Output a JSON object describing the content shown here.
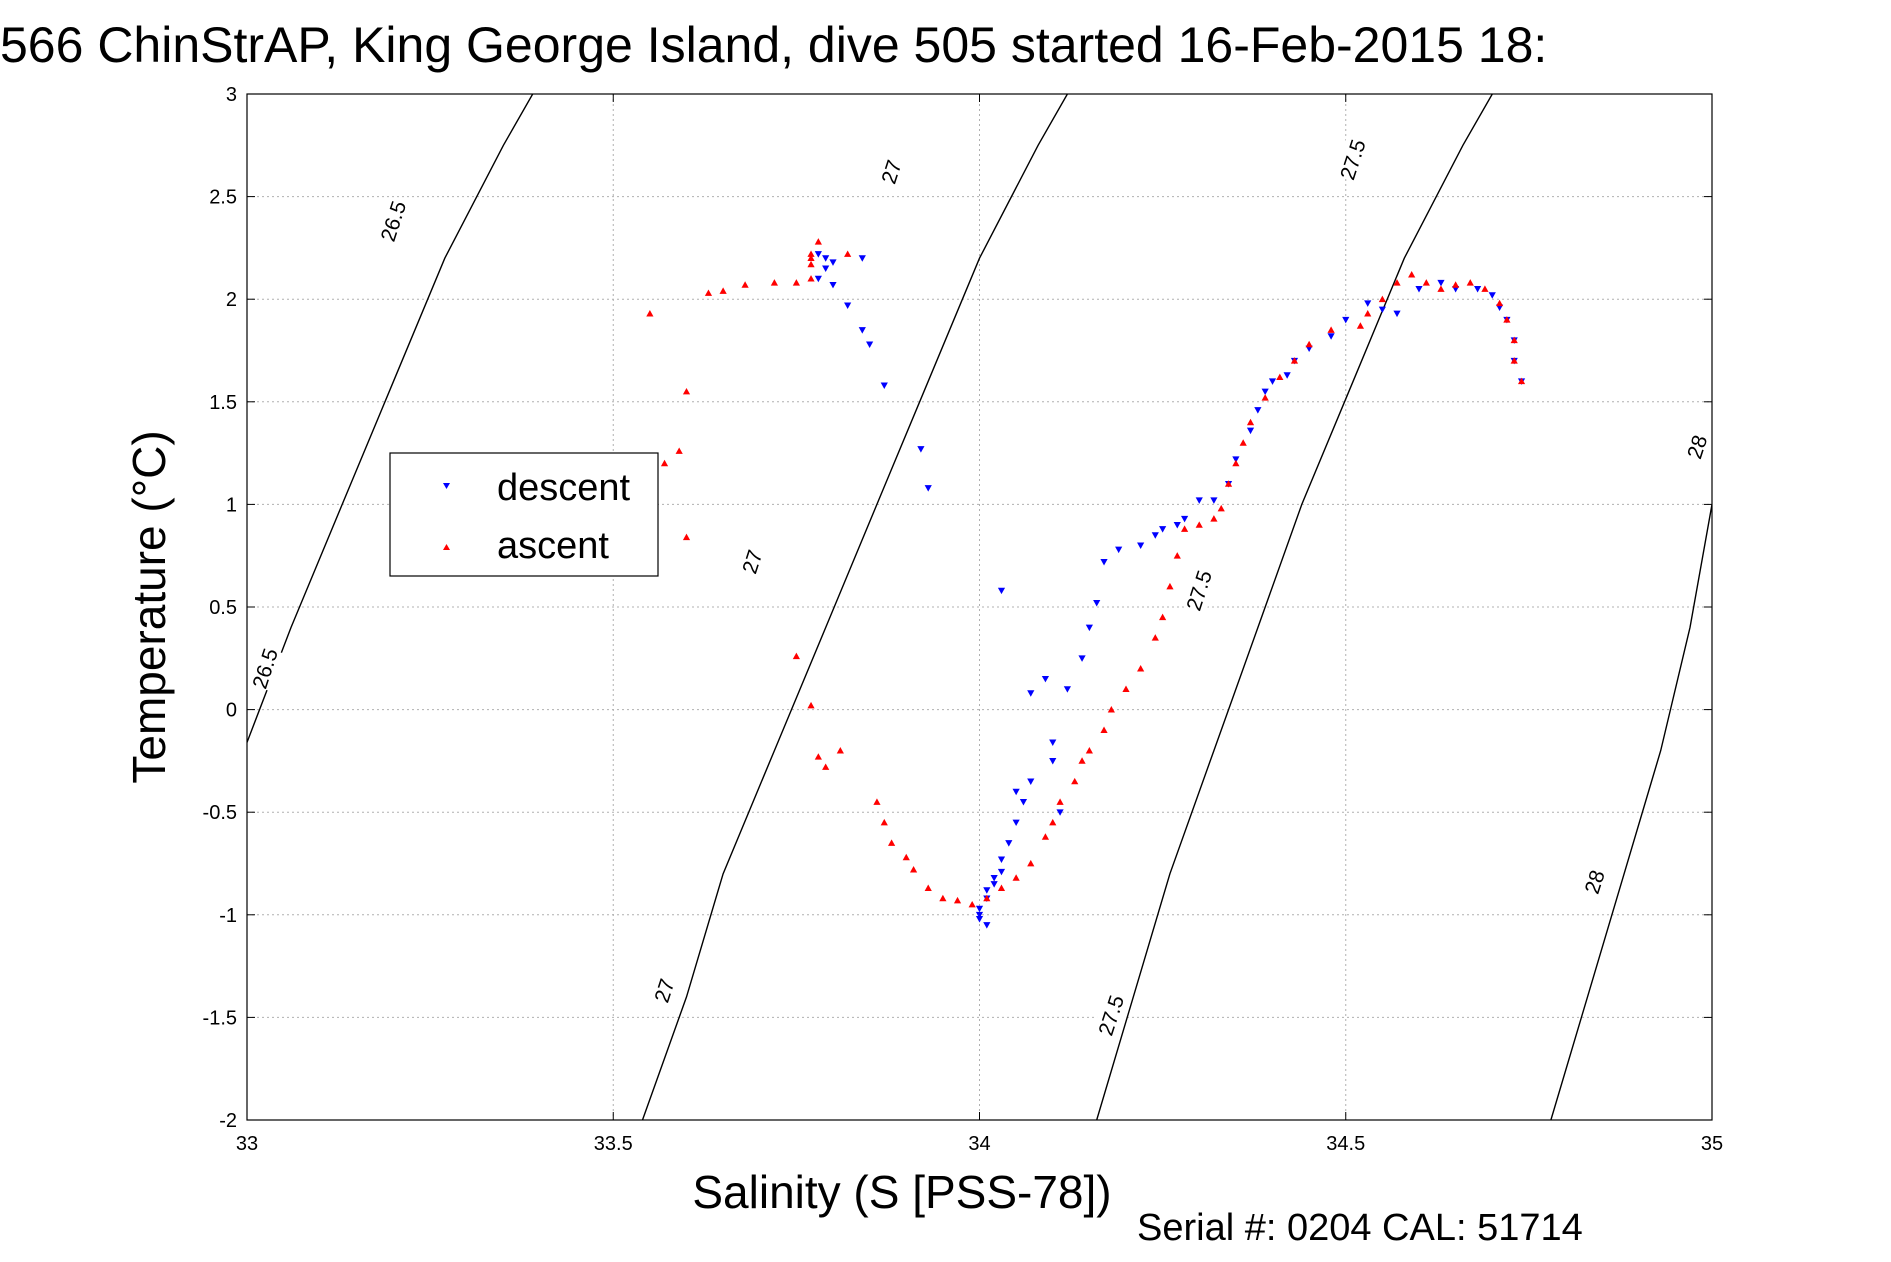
{
  "chart_data": {
    "type": "scatter",
    "title": "566 ChinStrAP, King George Island, dive 505 started 16-Feb-2015 18:",
    "xlabel": "Salinity (S [PSS-78])",
    "ylabel": "Temperature (°C)",
    "xlim": [
      33,
      35
    ],
    "ylim": [
      -2,
      3
    ],
    "x_ticks": [
      "33",
      "33.5",
      "34",
      "34.5",
      "35"
    ],
    "y_ticks": [
      "-2",
      "-1.5",
      "-1",
      "-0.5",
      "0",
      "0.5",
      "1",
      "1.5",
      "2",
      "2.5",
      "3"
    ],
    "grid": true,
    "legend_position": "left",
    "footer": "Serial #: 0204  CAL: 51714",
    "colors": {
      "descent": "#0000ff",
      "ascent": "#ff0000",
      "contour": "#000000"
    },
    "density_contours": [
      {
        "label": "26.5",
        "points": [
          [
            33,
            -0.16
          ],
          [
            33.06,
            0.4
          ],
          [
            33.13,
            1.0
          ],
          [
            33.2,
            1.6
          ],
          [
            33.27,
            2.2
          ],
          [
            33.35,
            2.75
          ],
          [
            33.39,
            3.0
          ]
        ],
        "label_positions": [
          {
            "text": "26.5",
            "s": 33.025,
            "t": 0.2
          },
          {
            "text": "26.5",
            "s": 33.2,
            "t": 2.38
          }
        ]
      },
      {
        "label": "27",
        "points": [
          [
            33.54,
            -2.0
          ],
          [
            33.6,
            -1.4
          ],
          [
            33.65,
            -0.8
          ],
          [
            33.72,
            -0.2
          ],
          [
            33.79,
            0.4
          ],
          [
            33.86,
            1.0
          ],
          [
            33.93,
            1.6
          ],
          [
            34.0,
            2.2
          ],
          [
            34.08,
            2.75
          ],
          [
            34.12,
            3.0
          ]
        ],
        "label_positions": [
          {
            "text": "27",
            "s": 33.57,
            "t": -1.37
          },
          {
            "text": "27",
            "s": 33.69,
            "t": 0.72
          },
          {
            "text": "27",
            "s": 33.88,
            "t": 2.62
          }
        ]
      },
      {
        "label": "27.5",
        "points": [
          [
            34.16,
            -2.0
          ],
          [
            34.21,
            -1.4
          ],
          [
            34.26,
            -0.8
          ],
          [
            34.32,
            -0.2
          ],
          [
            34.38,
            0.4
          ],
          [
            34.44,
            1.0
          ],
          [
            34.51,
            1.6
          ],
          [
            34.58,
            2.2
          ],
          [
            34.66,
            2.75
          ],
          [
            34.7,
            3.0
          ]
        ],
        "label_positions": [
          {
            "text": "27.5",
            "s": 34.18,
            "t": -1.49
          },
          {
            "text": "27.5",
            "s": 34.3,
            "t": 0.58
          },
          {
            "text": "27.5",
            "s": 34.51,
            "t": 2.68
          }
        ]
      },
      {
        "label": "28",
        "points": [
          [
            34.78,
            -2.0
          ],
          [
            34.83,
            -1.4
          ],
          [
            34.88,
            -0.8
          ],
          [
            34.93,
            -0.2
          ],
          [
            34.97,
            0.4
          ],
          [
            35.0,
            1.0
          ]
        ],
        "label_positions": [
          {
            "text": "28",
            "s": 34.84,
            "t": -0.84
          },
          {
            "text": "28",
            "s": 34.98,
            "t": 1.28
          }
        ]
      }
    ],
    "series": [
      {
        "name": "descent",
        "marker": "triangle-down",
        "points": [
          [
            33.78,
            2.22
          ],
          [
            33.79,
            2.2
          ],
          [
            33.8,
            2.18
          ],
          [
            33.79,
            2.15
          ],
          [
            33.78,
            2.1
          ],
          [
            33.8,
            2.07
          ],
          [
            33.84,
            2.2
          ],
          [
            33.82,
            1.97
          ],
          [
            33.84,
            1.85
          ],
          [
            33.85,
            1.78
          ],
          [
            33.87,
            1.58
          ],
          [
            33.92,
            1.27
          ],
          [
            33.93,
            1.08
          ],
          [
            34.03,
            0.58
          ],
          [
            34.07,
            0.08
          ],
          [
            34.09,
            0.15
          ],
          [
            34.1,
            -0.16
          ],
          [
            34.07,
            -0.35
          ],
          [
            34.06,
            -0.45
          ],
          [
            34.05,
            -0.4
          ],
          [
            34.05,
            -0.55
          ],
          [
            34.04,
            -0.65
          ],
          [
            34.03,
            -0.73
          ],
          [
            34.03,
            -0.79
          ],
          [
            34.02,
            -0.82
          ],
          [
            34.02,
            -0.85
          ],
          [
            34.01,
            -0.88
          ],
          [
            34.01,
            -0.92
          ],
          [
            34.0,
            -0.97
          ],
          [
            34.0,
            -1.0
          ],
          [
            34.0,
            -1.02
          ],
          [
            34.01,
            -1.05
          ],
          [
            34.11,
            -0.5
          ],
          [
            34.1,
            -0.25
          ],
          [
            34.12,
            0.1
          ],
          [
            34.14,
            0.25
          ],
          [
            34.15,
            0.4
          ],
          [
            34.16,
            0.52
          ],
          [
            34.17,
            0.72
          ],
          [
            34.19,
            0.78
          ],
          [
            34.22,
            0.8
          ],
          [
            34.24,
            0.85
          ],
          [
            34.25,
            0.88
          ],
          [
            34.27,
            0.9
          ],
          [
            34.28,
            0.93
          ],
          [
            34.3,
            1.02
          ],
          [
            34.32,
            1.02
          ],
          [
            34.34,
            1.1
          ],
          [
            34.35,
            1.22
          ],
          [
            34.37,
            1.36
          ],
          [
            34.38,
            1.46
          ],
          [
            34.39,
            1.55
          ],
          [
            34.4,
            1.6
          ],
          [
            34.42,
            1.63
          ],
          [
            34.43,
            1.7
          ],
          [
            34.45,
            1.76
          ],
          [
            34.48,
            1.82
          ],
          [
            34.5,
            1.9
          ],
          [
            34.53,
            1.98
          ],
          [
            34.55,
            1.95
          ],
          [
            34.57,
            1.93
          ],
          [
            34.6,
            2.05
          ],
          [
            34.63,
            2.08
          ],
          [
            34.65,
            2.05
          ],
          [
            34.68,
            2.05
          ],
          [
            34.7,
            2.02
          ],
          [
            34.71,
            1.96
          ],
          [
            34.72,
            1.9
          ],
          [
            34.73,
            1.8
          ],
          [
            34.73,
            1.7
          ],
          [
            34.74,
            1.6
          ]
        ]
      },
      {
        "name": "ascent",
        "marker": "triangle-up",
        "points": [
          [
            33.55,
            1.93
          ],
          [
            33.57,
            1.2
          ],
          [
            33.59,
            1.26
          ],
          [
            33.6,
            1.55
          ],
          [
            33.6,
            0.84
          ],
          [
            33.63,
            2.03
          ],
          [
            33.65,
            2.04
          ],
          [
            33.68,
            2.07
          ],
          [
            33.72,
            2.08
          ],
          [
            33.75,
            2.08
          ],
          [
            33.77,
            2.1
          ],
          [
            33.77,
            2.17
          ],
          [
            33.77,
            2.22
          ],
          [
            33.78,
            2.28
          ],
          [
            33.77,
            2.2
          ],
          [
            33.82,
            2.22
          ],
          [
            33.75,
            0.26
          ],
          [
            33.77,
            0.02
          ],
          [
            33.78,
            -0.23
          ],
          [
            33.79,
            -0.28
          ],
          [
            33.81,
            -0.2
          ],
          [
            33.86,
            -0.45
          ],
          [
            33.87,
            -0.55
          ],
          [
            33.88,
            -0.65
          ],
          [
            33.9,
            -0.72
          ],
          [
            33.91,
            -0.78
          ],
          [
            33.93,
            -0.87
          ],
          [
            33.95,
            -0.92
          ],
          [
            33.97,
            -0.93
          ],
          [
            33.99,
            -0.95
          ],
          [
            34.01,
            -0.92
          ],
          [
            34.03,
            -0.87
          ],
          [
            34.05,
            -0.82
          ],
          [
            34.07,
            -0.75
          ],
          [
            34.09,
            -0.62
          ],
          [
            34.1,
            -0.55
          ],
          [
            34.11,
            -0.45
          ],
          [
            34.13,
            -0.35
          ],
          [
            34.14,
            -0.25
          ],
          [
            34.15,
            -0.2
          ],
          [
            34.17,
            -0.1
          ],
          [
            34.18,
            0.0
          ],
          [
            34.2,
            0.1
          ],
          [
            34.22,
            0.2
          ],
          [
            34.24,
            0.35
          ],
          [
            34.25,
            0.45
          ],
          [
            34.26,
            0.6
          ],
          [
            34.27,
            0.75
          ],
          [
            34.28,
            0.88
          ],
          [
            34.3,
            0.9
          ],
          [
            34.32,
            0.93
          ],
          [
            34.33,
            0.98
          ],
          [
            34.34,
            1.1
          ],
          [
            34.35,
            1.2
          ],
          [
            34.36,
            1.3
          ],
          [
            34.37,
            1.4
          ],
          [
            34.39,
            1.52
          ],
          [
            34.41,
            1.62
          ],
          [
            34.43,
            1.7
          ],
          [
            34.45,
            1.78
          ],
          [
            34.48,
            1.85
          ],
          [
            34.52,
            1.87
          ],
          [
            34.53,
            1.93
          ],
          [
            34.55,
            2.0
          ],
          [
            34.57,
            2.08
          ],
          [
            34.59,
            2.12
          ],
          [
            34.61,
            2.08
          ],
          [
            34.63,
            2.05
          ],
          [
            34.65,
            2.07
          ],
          [
            34.67,
            2.08
          ],
          [
            34.69,
            2.05
          ],
          [
            34.71,
            1.98
          ],
          [
            34.72,
            1.9
          ],
          [
            34.73,
            1.8
          ],
          [
            34.73,
            1.7
          ],
          [
            34.74,
            1.6
          ]
        ]
      }
    ]
  }
}
